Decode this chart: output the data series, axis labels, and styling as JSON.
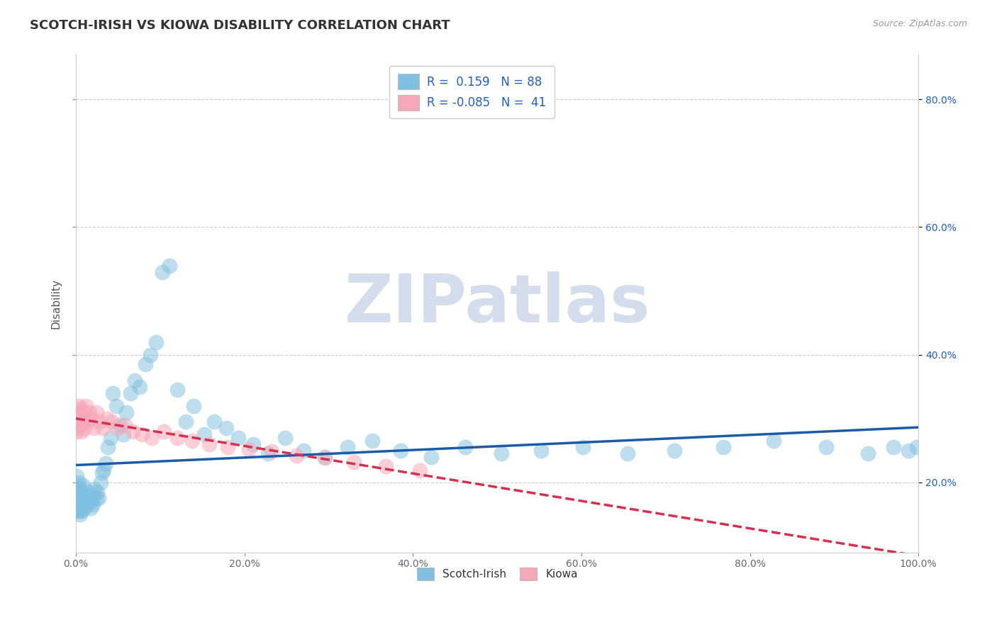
{
  "title": "SCOTCH-IRISH VS KIOWA DISABILITY CORRELATION CHART",
  "source": "Source: ZipAtlas.com",
  "ylabel": "Disability",
  "r_scotch": 0.159,
  "n_scotch": 88,
  "r_kiowa": -0.085,
  "n_kiowa": 41,
  "scotch_color": "#7fbfdf",
  "kiowa_color": "#f7a8b8",
  "trend_scotch_color": "#1a5ca8",
  "trend_kiowa_color": "#d63050",
  "watermark_text": "ZIPatlas",
  "watermark_color": "#ccd8e8",
  "scotch_x": [
    0.001,
    0.001,
    0.001,
    0.002,
    0.002,
    0.002,
    0.002,
    0.003,
    0.003,
    0.003,
    0.004,
    0.004,
    0.004,
    0.005,
    0.005,
    0.005,
    0.006,
    0.006,
    0.007,
    0.007,
    0.008,
    0.008,
    0.009,
    0.01,
    0.01,
    0.011,
    0.012,
    0.013,
    0.014,
    0.015,
    0.016,
    0.017,
    0.018,
    0.019,
    0.02,
    0.021,
    0.022,
    0.024,
    0.025,
    0.027,
    0.029,
    0.031,
    0.033,
    0.035,
    0.038,
    0.041,
    0.044,
    0.048,
    0.052,
    0.056,
    0.06,
    0.065,
    0.07,
    0.076,
    0.082,
    0.088,
    0.095,
    0.103,
    0.111,
    0.12,
    0.13,
    0.14,
    0.152,
    0.164,
    0.178,
    0.193,
    0.21,
    0.228,
    0.248,
    0.27,
    0.295,
    0.322,
    0.352,
    0.385,
    0.422,
    0.462,
    0.505,
    0.552,
    0.602,
    0.655,
    0.71,
    0.768,
    0.828,
    0.89,
    0.94,
    0.97,
    0.988,
    0.998
  ],
  "scotch_y": [
    0.21,
    0.185,
    0.17,
    0.195,
    0.18,
    0.165,
    0.155,
    0.2,
    0.175,
    0.16,
    0.19,
    0.17,
    0.155,
    0.185,
    0.165,
    0.15,
    0.18,
    0.16,
    0.175,
    0.155,
    0.195,
    0.16,
    0.17,
    0.18,
    0.16,
    0.175,
    0.165,
    0.175,
    0.185,
    0.17,
    0.18,
    0.17,
    0.16,
    0.175,
    0.165,
    0.18,
    0.19,
    0.175,
    0.185,
    0.175,
    0.2,
    0.215,
    0.22,
    0.23,
    0.255,
    0.27,
    0.34,
    0.32,
    0.29,
    0.275,
    0.31,
    0.34,
    0.36,
    0.35,
    0.385,
    0.4,
    0.42,
    0.53,
    0.54,
    0.345,
    0.295,
    0.32,
    0.275,
    0.295,
    0.285,
    0.27,
    0.26,
    0.245,
    0.27,
    0.25,
    0.24,
    0.255,
    0.265,
    0.25,
    0.24,
    0.255,
    0.245,
    0.25,
    0.255,
    0.245,
    0.25,
    0.255,
    0.265,
    0.255,
    0.245,
    0.255,
    0.25,
    0.255
  ],
  "kiowa_x": [
    0.001,
    0.001,
    0.002,
    0.002,
    0.003,
    0.003,
    0.004,
    0.005,
    0.006,
    0.007,
    0.008,
    0.009,
    0.01,
    0.011,
    0.012,
    0.014,
    0.016,
    0.018,
    0.021,
    0.024,
    0.028,
    0.032,
    0.037,
    0.043,
    0.05,
    0.058,
    0.067,
    0.078,
    0.09,
    0.104,
    0.12,
    0.138,
    0.158,
    0.18,
    0.205,
    0.232,
    0.262,
    0.295,
    0.33,
    0.368,
    0.408
  ],
  "kiowa_y": [
    0.3,
    0.28,
    0.31,
    0.285,
    0.32,
    0.295,
    0.305,
    0.29,
    0.315,
    0.28,
    0.295,
    0.31,
    0.285,
    0.3,
    0.32,
    0.295,
    0.31,
    0.3,
    0.285,
    0.31,
    0.295,
    0.285,
    0.3,
    0.295,
    0.285,
    0.29,
    0.28,
    0.275,
    0.27,
    0.28,
    0.27,
    0.265,
    0.26,
    0.255,
    0.252,
    0.248,
    0.242,
    0.238,
    0.232,
    0.225,
    0.218
  ],
  "xlim": [
    0.0,
    1.0
  ],
  "ylim": [
    0.09,
    0.87
  ],
  "xticks": [
    0.0,
    0.2,
    0.4,
    0.6,
    0.8,
    1.0
  ],
  "xtick_labels": [
    "0.0%",
    "20.0%",
    "40.0%",
    "60.0%",
    "80.0%",
    "100.0%"
  ],
  "yticks": [
    0.2,
    0.4,
    0.6,
    0.8
  ],
  "ytick_labels": [
    "20.0%",
    "40.0%",
    "60.0%",
    "80.0%"
  ],
  "bg_color": "#ffffff",
  "grid_color": "#cccccc",
  "title_fontsize": 13,
  "label_fontsize": 11,
  "tick_fontsize": 10
}
